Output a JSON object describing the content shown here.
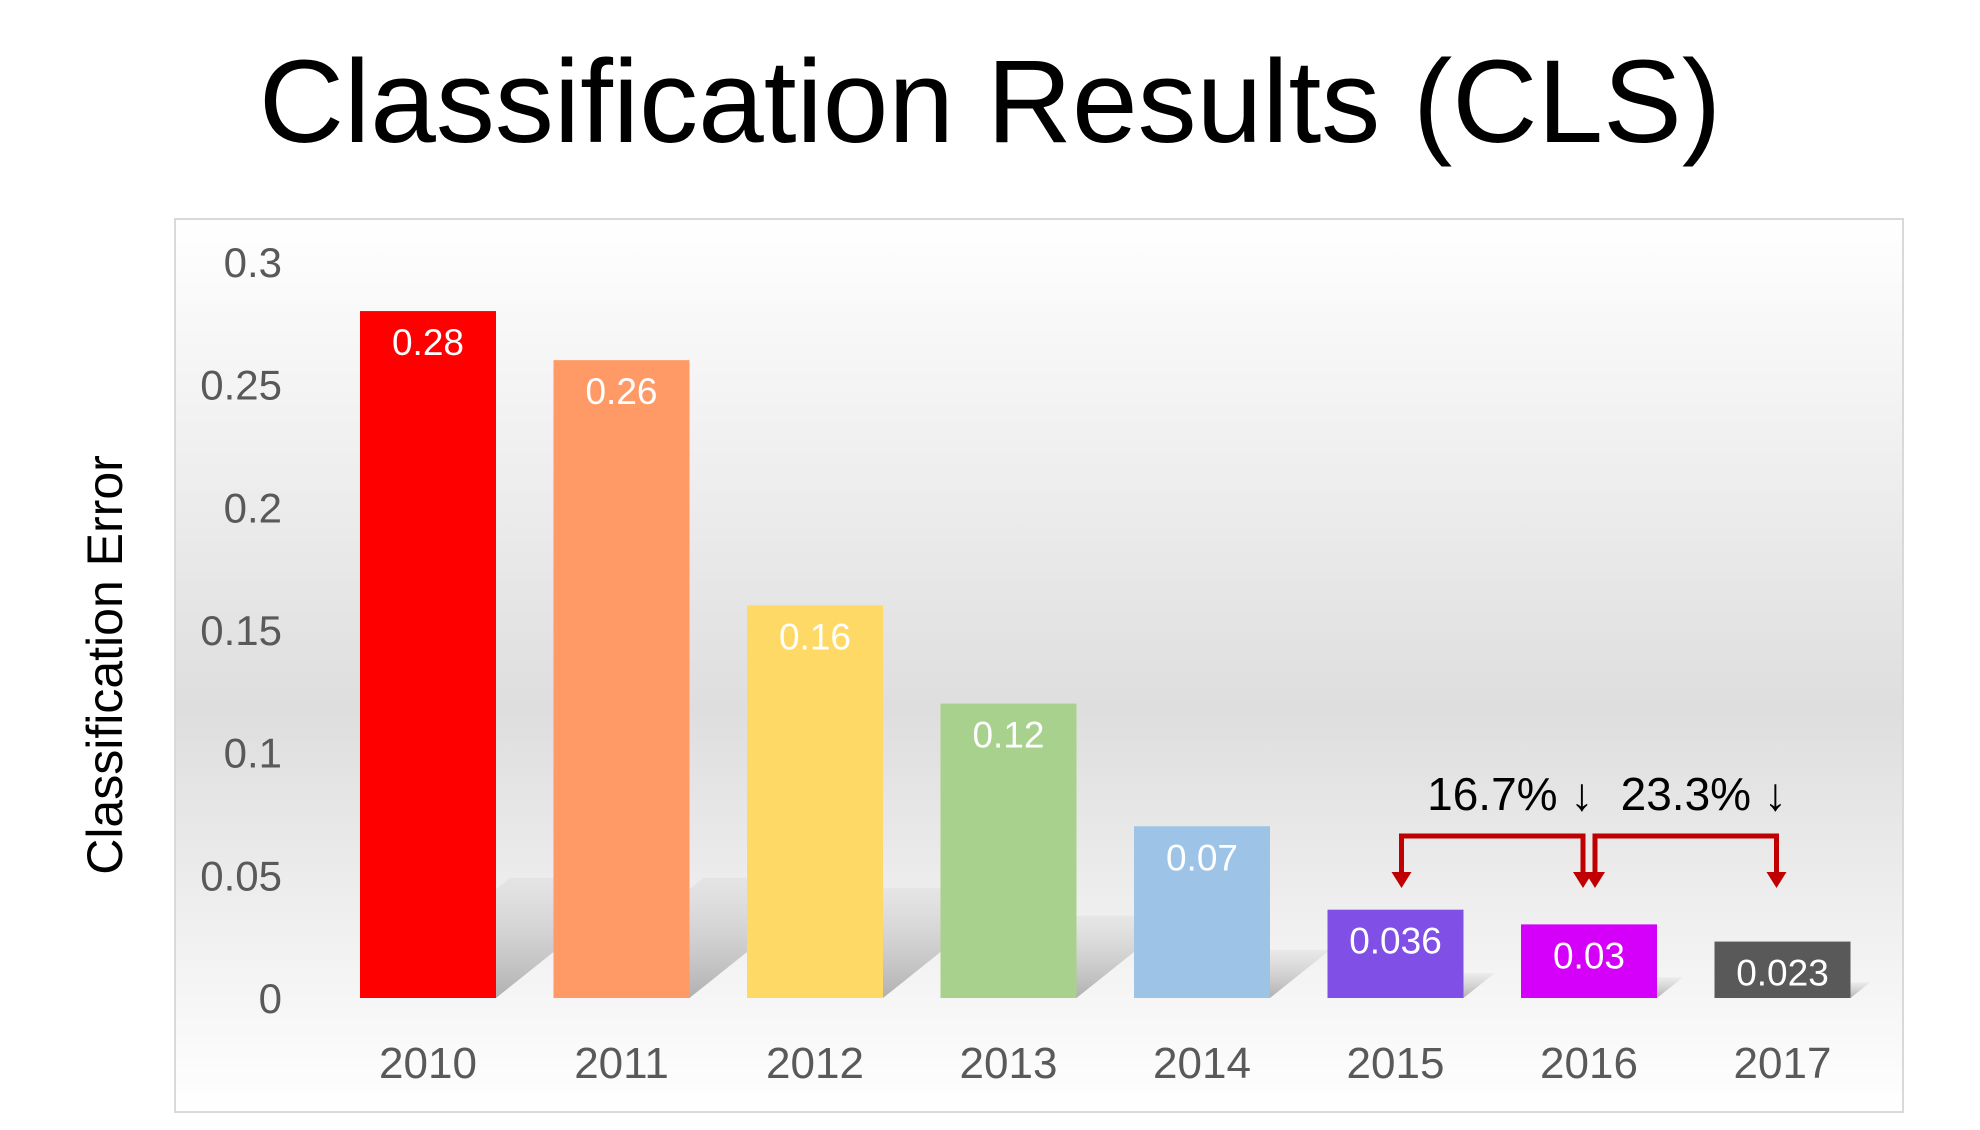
{
  "chart_data": {
    "type": "bar",
    "title": "Classification Results (CLS)",
    "xlabel": "",
    "ylabel": "Classification Error",
    "ylim": [
      0,
      0.3
    ],
    "yticks": [
      "0",
      "0.05",
      "0.1",
      "0.15",
      "0.2",
      "0.25",
      "0.3"
    ],
    "ytick_values": [
      0,
      0.05,
      0.1,
      0.15,
      0.2,
      0.25,
      0.3
    ],
    "categories": [
      "2010",
      "2011",
      "2012",
      "2013",
      "2014",
      "2015",
      "2016",
      "2017"
    ],
    "values": [
      0.28,
      0.26,
      0.16,
      0.12,
      0.07,
      0.036,
      0.03,
      0.023
    ],
    "value_labels": [
      "0.28",
      "0.26",
      "0.16",
      "0.12",
      "0.07",
      "0.036",
      "0.03",
      "0.023"
    ],
    "colors": [
      "#ff0000",
      "#ff9966",
      "#ffd966",
      "#a9d18e",
      "#9dc3e6",
      "#7f4fe6",
      "#d500f9",
      "#595959"
    ],
    "grid": false,
    "annotations": [
      {
        "text": "16.7% ↓",
        "from": "2015",
        "to": "2016"
      },
      {
        "text": "23.3% ↓",
        "from": "2016",
        "to": "2017"
      }
    ],
    "annotation_color": "#c00000"
  }
}
